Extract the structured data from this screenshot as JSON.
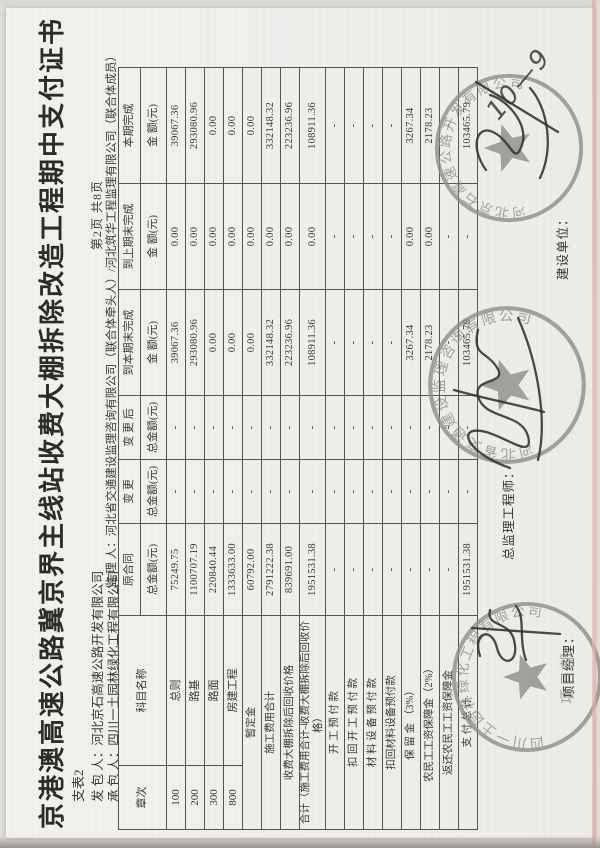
{
  "page": {
    "form_code": "支表2",
    "title": "京港澳高速公路冀京界主线站收费大棚拆除改造工程期中支付证书",
    "page_info": "第2页  共8页"
  },
  "parties": {
    "employer_label": "发 包 人：",
    "employer": "河北京石高速公路开发有限公司",
    "contractor_label": "承 包 人：",
    "contractor": "四川一土园林绿化工程有限公司",
    "supervisor_label": "监 理 人：",
    "supervisor": "河北省交通建设监理咨询有限公司（联合体牵头人）/河北筑华工程监理有限公司（联合体成员）"
  },
  "table": {
    "col_headers": {
      "chapter": "章次",
      "item_name": "科目名称",
      "original_contract": "原合同",
      "change": "变  更",
      "after_change": "变 更 后",
      "to_period_end": "到本期末完成",
      "to_prev_period_end": "到上期末完成",
      "current_period": "本期完成",
      "total_amount_yuan": "总金额(元)",
      "amount_yuan": "金  额(元)"
    },
    "rows": [
      {
        "chapter": "100",
        "name": "总则",
        "original": "75249.75",
        "change": "-",
        "after_change": "-",
        "to_period_end": "39067.36",
        "to_prev_end": "0.00",
        "current": "39067.36"
      },
      {
        "chapter": "200",
        "name": "路基",
        "original": "1100707.19",
        "change": "-",
        "after_change": "-",
        "to_period_end": "293080.96",
        "to_prev_end": "0.00",
        "current": "293080.96"
      },
      {
        "chapter": "300",
        "name": "路面",
        "original": "220840.44",
        "change": "-",
        "after_change": "-",
        "to_period_end": "0.00",
        "to_prev_end": "0.00",
        "current": "0.00"
      },
      {
        "chapter": "800",
        "name": "房建工程",
        "original": "1333633.00",
        "change": "-",
        "after_change": "-",
        "to_period_end": "0.00",
        "to_prev_end": "0.00",
        "current": "0.00"
      },
      {
        "chapter": null,
        "name": "暂定金",
        "original": "60792.00",
        "change": "-",
        "after_change": "-",
        "to_period_end": "0.00",
        "to_prev_end": "0.00",
        "current": "0.00"
      },
      {
        "chapter": null,
        "name": "施工费用合计",
        "original": "2791222.38",
        "change": "-",
        "after_change": "-",
        "to_period_end": "332148.32",
        "to_prev_end": "0.00",
        "current": "332148.32"
      },
      {
        "chapter": null,
        "name": "收费大棚拆除后回收价格",
        "original": "839691.00",
        "change": "-",
        "after_change": "-",
        "to_period_end": "223236.96",
        "to_prev_end": "0.00",
        "current": "223236.96"
      },
      {
        "chapter": null,
        "name": "合计（施工费用合计-收费大棚拆除后回收价格）",
        "original": "1951531.38",
        "change": "-",
        "after_change": "-",
        "to_period_end": "108911.36",
        "to_prev_end": "0.00",
        "current": "108911.36"
      },
      {
        "chapter": null,
        "name": "开 工 预 付 款",
        "original": "-",
        "change": "-",
        "after_change": "-",
        "to_period_end": "-",
        "to_prev_end": "-",
        "current": "-"
      },
      {
        "chapter": null,
        "name": "扣 回 开 工 预 付 款",
        "original": "-",
        "change": "-",
        "after_change": "-",
        "to_period_end": "-",
        "to_prev_end": "-",
        "current": "-"
      },
      {
        "chapter": null,
        "name": "材 料 设 备 预 付 款",
        "original": "-",
        "change": "-",
        "after_change": "-",
        "to_period_end": "-",
        "to_prev_end": "-",
        "current": "-"
      },
      {
        "chapter": null,
        "name": "扣回材料设备预付款",
        "original": "-",
        "change": "-",
        "after_change": "-",
        "to_period_end": "-",
        "to_prev_end": "-",
        "current": "-"
      },
      {
        "chapter": null,
        "name": "保  留  金 （3%）",
        "original": "-",
        "change": "-",
        "after_change": "-",
        "to_period_end": "3267.34",
        "to_prev_end": "0.00",
        "current": "3267.34"
      },
      {
        "chapter": null,
        "name": "农民工工资保障金（2%）",
        "original": "-",
        "change": "-",
        "after_change": "-",
        "to_period_end": "2178.23",
        "to_prev_end": "0.00",
        "current": "2178.23"
      },
      {
        "chapter": null,
        "name": "返还农民工工资保障金",
        "original": "-",
        "change": "-",
        "after_change": "-",
        "to_period_end": "-",
        "to_prev_end": "-",
        "current": "-"
      },
      {
        "chapter": null,
        "name": "支 付 总 计",
        "original": "1951531.38",
        "change": "-",
        "after_change": "-",
        "to_period_end": "103465.79",
        "to_prev_end": "-",
        "current": "103465.79"
      }
    ]
  },
  "signature_block": {
    "chief_supervisor_label": "总监理工程师：",
    "project_manager_label": "项目经理：",
    "client_label": "建设单位：",
    "handwritten_date": "10—9"
  },
  "stamps": {
    "contractor_seal": {
      "company": "四川一土园林绿化工程有限公司",
      "center": "项目部"
    },
    "supervisor_seal": {
      "company": "河北省交通建设监理咨询有限公司"
    },
    "client_seal": {
      "company": "河北京石高速公路开发有限公司"
    }
  },
  "colors": {
    "paper": "#f1f0ee",
    "stamp_ink": "#8f8e86",
    "table_line": "#56544e"
  }
}
